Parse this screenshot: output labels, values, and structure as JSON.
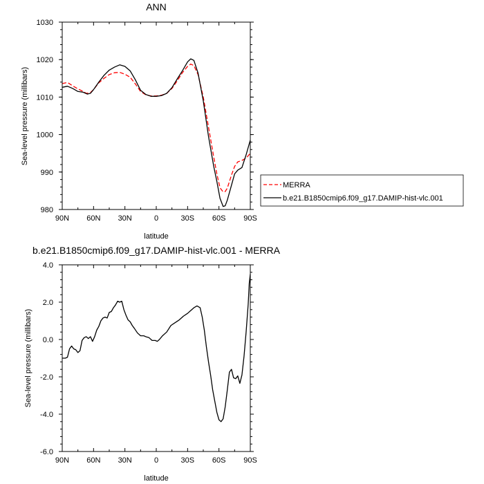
{
  "chart_data": [
    {
      "type": "line",
      "title": "ANN",
      "xlabel": "latitude",
      "ylabel": "Sea-level pressure (millibars)",
      "xlim": [
        90,
        -90
      ],
      "ylim": [
        980,
        1030
      ],
      "x_tick_values": [
        90,
        60,
        30,
        0,
        -30,
        -60,
        -90
      ],
      "x_tick_labels": [
        "90N",
        "60N",
        "30N",
        "0",
        "30S",
        "60S",
        "90S"
      ],
      "y_tick_values": [
        980,
        990,
        1000,
        1010,
        1020,
        1030
      ],
      "y_tick_labels": [
        "980",
        "990",
        "1000",
        "1010",
        "1020",
        "1030"
      ],
      "legend": {
        "placement": "right-outside"
      },
      "series": [
        {
          "name": "MERRA",
          "color": "#ff0000",
          "dash": "dashed",
          "points": [
            [
              90,
              1013.6
            ],
            [
              85,
              1013.9
            ],
            [
              80,
              1013
            ],
            [
              75,
              1012.2
            ],
            [
              70,
              1011.5
            ],
            [
              67,
              1011
            ],
            [
              63,
              1011.2
            ],
            [
              60,
              1012
            ],
            [
              55,
              1013.8
            ],
            [
              50,
              1015
            ],
            [
              45,
              1016
            ],
            [
              40,
              1016.5
            ],
            [
              35,
              1016.6
            ],
            [
              30,
              1016.1
            ],
            [
              25,
              1015.3
            ],
            [
              20,
              1013.5
            ],
            [
              15,
              1011.5
            ],
            [
              10,
              1010.6
            ],
            [
              5,
              1010.3
            ],
            [
              0,
              1010.3
            ],
            [
              -5,
              1010.5
            ],
            [
              -10,
              1011
            ],
            [
              -15,
              1012.3
            ],
            [
              -20,
              1014.3
            ],
            [
              -25,
              1016.5
            ],
            [
              -30,
              1018.2
            ],
            [
              -33,
              1018.8
            ],
            [
              -36,
              1018.4
            ],
            [
              -40,
              1016
            ],
            [
              -45,
              1010
            ],
            [
              -50,
              1002
            ],
            [
              -55,
              994
            ],
            [
              -58,
              989.5
            ],
            [
              -61,
              985.8
            ],
            [
              -64,
              984.7
            ],
            [
              -66,
              984.8
            ],
            [
              -68,
              985.7
            ],
            [
              -72,
              989.2
            ],
            [
              -75,
              991.5
            ],
            [
              -78,
              992.7
            ],
            [
              -82,
              993.1
            ],
            [
              -86,
              993.7
            ],
            [
              -90,
              995
            ]
          ]
        },
        {
          "name": "b.e21.B1850cmip6.f09_g17.DAMIP-hist-vlc.001",
          "color": "#000000",
          "dash": "solid",
          "points": [
            [
              90,
              1012.6
            ],
            [
              85,
              1012.9
            ],
            [
              80,
              1012.3
            ],
            [
              75,
              1011.5
            ],
            [
              70,
              1011.3
            ],
            [
              66,
              1010.8
            ],
            [
              63,
              1011
            ],
            [
              60,
              1012
            ],
            [
              55,
              1014
            ],
            [
              50,
              1015.8
            ],
            [
              45,
              1017.2
            ],
            [
              40,
              1018
            ],
            [
              35,
              1018.6
            ],
            [
              30,
              1018.2
            ],
            [
              25,
              1017
            ],
            [
              20,
              1014.6
            ],
            [
              15,
              1011.8
            ],
            [
              10,
              1010.7
            ],
            [
              5,
              1010.2
            ],
            [
              0,
              1010.2
            ],
            [
              -5,
              1010.4
            ],
            [
              -10,
              1011
            ],
            [
              -15,
              1012.5
            ],
            [
              -20,
              1014.8
            ],
            [
              -25,
              1017
            ],
            [
              -30,
              1019.4
            ],
            [
              -33,
              1020.2
            ],
            [
              -36,
              1019.8
            ],
            [
              -40,
              1016.4
            ],
            [
              -45,
              1009
            ],
            [
              -50,
              999.5
            ],
            [
              -55,
              991.5
            ],
            [
              -58,
              987.5
            ],
            [
              -61,
              983
            ],
            [
              -64,
              980.8
            ],
            [
              -66,
              981
            ],
            [
              -68,
              982.5
            ],
            [
              -72,
              986.5
            ],
            [
              -75,
              989.5
            ],
            [
              -78,
              990.5
            ],
            [
              -82,
              991.2
            ],
            [
              -86,
              994.6
            ],
            [
              -90,
              998.5
            ]
          ]
        }
      ]
    },
    {
      "type": "line",
      "title": "b.e21.B1850cmip6.f09_g17.DAMIP-hist-vlc.001 - MERRA",
      "xlabel": "latitude",
      "ylabel": "Sea-level pressure (millibars)",
      "xlim": [
        90,
        -90
      ],
      "ylim": [
        -6,
        4
      ],
      "x_tick_values": [
        90,
        60,
        30,
        0,
        -30,
        -60,
        -90
      ],
      "x_tick_labels": [
        "90N",
        "60N",
        "30N",
        "0",
        "30S",
        "60S",
        "90S"
      ],
      "y_tick_values": [
        -6,
        -4,
        -2,
        0,
        2,
        4
      ],
      "y_tick_labels": [
        "-6.0",
        "-4.0",
        "-2.0",
        "0.0",
        "2.0",
        "4.0"
      ],
      "series": [
        {
          "color": "#000000",
          "dash": "solid",
          "points": [
            [
              90,
              -1
            ],
            [
              87,
              -1
            ],
            [
              85,
              -0.95
            ],
            [
              83,
              -0.5
            ],
            [
              81,
              -0.35
            ],
            [
              79,
              -0.5
            ],
            [
              77,
              -0.55
            ],
            [
              75,
              -0.7
            ],
            [
              73,
              -0.6
            ],
            [
              71,
              -0.05
            ],
            [
              69,
              0.1
            ],
            [
              67,
              0.15
            ],
            [
              65,
              0.05
            ],
            [
              63,
              0.15
            ],
            [
              61,
              -0.1
            ],
            [
              59,
              0.15
            ],
            [
              57,
              0.5
            ],
            [
              55,
              0.7
            ],
            [
              53,
              1
            ],
            [
              51,
              1.15
            ],
            [
              49,
              1.2
            ],
            [
              47,
              1.15
            ],
            [
              45,
              1.45
            ],
            [
              43,
              1.5
            ],
            [
              41,
              1.7
            ],
            [
              39,
              1.85
            ],
            [
              37,
              2.05
            ],
            [
              35,
              2
            ],
            [
              33,
              2.05
            ],
            [
              31,
              1.6
            ],
            [
              29,
              1.3
            ],
            [
              27,
              1.05
            ],
            [
              25,
              0.95
            ],
            [
              23,
              0.75
            ],
            [
              21,
              0.6
            ],
            [
              18,
              0.35
            ],
            [
              15,
              0.2
            ],
            [
              12,
              0.2
            ],
            [
              10,
              0.15
            ],
            [
              7,
              0.1
            ],
            [
              4,
              -0.05
            ],
            [
              1,
              -0.05
            ],
            [
              -1,
              -0.1
            ],
            [
              -3,
              0
            ],
            [
              -6,
              0.2
            ],
            [
              -10,
              0.4
            ],
            [
              -14,
              0.75
            ],
            [
              -18,
              0.9
            ],
            [
              -22,
              1.05
            ],
            [
              -26,
              1.25
            ],
            [
              -30,
              1.4
            ],
            [
              -33,
              1.55
            ],
            [
              -36,
              1.7
            ],
            [
              -39,
              1.8
            ],
            [
              -42,
              1.7
            ],
            [
              -44,
              1.2
            ],
            [
              -46,
              0.5
            ],
            [
              -48,
              -0.4
            ],
            [
              -50,
              -1.2
            ],
            [
              -52,
              -1.9
            ],
            [
              -54,
              -2.7
            ],
            [
              -56,
              -3.3
            ],
            [
              -58,
              -3.9
            ],
            [
              -60,
              -4.3
            ],
            [
              -62,
              -4.4
            ],
            [
              -64,
              -4.25
            ],
            [
              -66,
              -3.6
            ],
            [
              -68,
              -2.7
            ],
            [
              -70,
              -1.75
            ],
            [
              -72,
              -1.6
            ],
            [
              -74,
              -2.05
            ],
            [
              -76,
              -2.1
            ],
            [
              -78,
              -1.95
            ],
            [
              -80,
              -2.35
            ],
            [
              -82,
              -1.9
            ],
            [
              -84,
              -0.9
            ],
            [
              -86,
              0.4
            ],
            [
              -88,
              1.9
            ],
            [
              -89,
              3.0
            ],
            [
              -90,
              3.5
            ]
          ]
        }
      ]
    }
  ]
}
